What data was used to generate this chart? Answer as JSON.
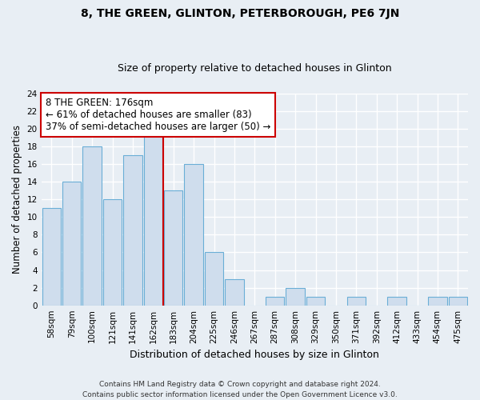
{
  "title": "8, THE GREEN, GLINTON, PETERBOROUGH, PE6 7JN",
  "subtitle": "Size of property relative to detached houses in Glinton",
  "xlabel": "Distribution of detached houses by size in Glinton",
  "ylabel": "Number of detached properties",
  "categories": [
    "58sqm",
    "79sqm",
    "100sqm",
    "121sqm",
    "141sqm",
    "162sqm",
    "183sqm",
    "204sqm",
    "225sqm",
    "246sqm",
    "267sqm",
    "287sqm",
    "308sqm",
    "329sqm",
    "350sqm",
    "371sqm",
    "392sqm",
    "412sqm",
    "433sqm",
    "454sqm",
    "475sqm"
  ],
  "values": [
    11,
    14,
    18,
    12,
    17,
    20,
    13,
    16,
    6,
    3,
    0,
    1,
    2,
    1,
    0,
    1,
    0,
    1,
    0,
    1,
    1
  ],
  "bar_color": "#cfdded",
  "bar_edge_color": "#6aaed6",
  "vline_index": 5,
  "vline_color": "#cc0000",
  "annotation_line1": "8 THE GREEN: 176sqm",
  "annotation_line2": "← 61% of detached houses are smaller (83)",
  "annotation_line3": "37% of semi-detached houses are larger (50) →",
  "annotation_box_color": "white",
  "annotation_box_edge_color": "#cc0000",
  "ylim": [
    0,
    24
  ],
  "yticks": [
    0,
    2,
    4,
    6,
    8,
    10,
    12,
    14,
    16,
    18,
    20,
    22,
    24
  ],
  "footer_text": "Contains HM Land Registry data © Crown copyright and database right 2024.\nContains public sector information licensed under the Open Government Licence v3.0.",
  "background_color": "#e8eef4",
  "grid_color": "white",
  "title_fontsize": 10,
  "subtitle_fontsize": 9,
  "xlabel_fontsize": 9,
  "ylabel_fontsize": 8.5,
  "tick_fontsize": 7.5,
  "annotation_fontsize": 8.5,
  "footer_fontsize": 6.5
}
